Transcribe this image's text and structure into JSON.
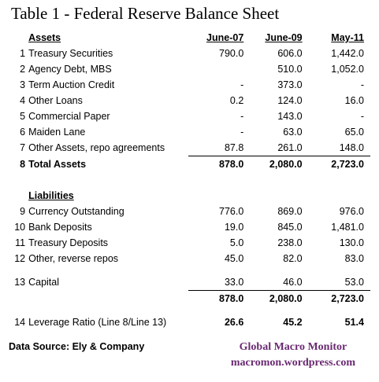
{
  "title": "Table 1 - Federal Reserve Balance Sheet",
  "columns": [
    "June-07",
    "June-09",
    "May-11"
  ],
  "assets_header": "Assets",
  "assets": [
    {
      "num": "1",
      "label": "Treasury Securities",
      "v": [
        "790.0",
        "606.0",
        "1,442.0"
      ]
    },
    {
      "num": "2",
      "label": "Agency Debt, MBS",
      "v": [
        "",
        "510.0",
        "1,052.0"
      ]
    },
    {
      "num": "3",
      "label": "Term Auction Credit",
      "v": [
        "-",
        "373.0",
        "-"
      ]
    },
    {
      "num": "4",
      "label": "Other Loans",
      "v": [
        "0.2",
        "124.0",
        "16.0"
      ]
    },
    {
      "num": "5",
      "label": "Commercial Paper",
      "v": [
        "-",
        "143.0",
        "-"
      ]
    },
    {
      "num": "6",
      "label": "Maiden Lane",
      "v": [
        "-",
        "63.0",
        "65.0"
      ]
    },
    {
      "num": "7",
      "label": "Other Assets, repo agreements",
      "v": [
        "87.8",
        "261.0",
        "148.0"
      ]
    },
    {
      "num": "8",
      "label": "Total Assets",
      "v": [
        "878.0",
        "2,080.0",
        "2,723.0"
      ]
    }
  ],
  "liabilities_header": "Liabilities",
  "liabilities": [
    {
      "num": "9",
      "label": "Currency Outstanding",
      "v": [
        "776.0",
        "869.0",
        "976.0"
      ]
    },
    {
      "num": "10",
      "label": "Bank Deposits",
      "v": [
        "19.0",
        "845.0",
        "1,481.0"
      ]
    },
    {
      "num": "11",
      "label": "Treasury Deposits",
      "v": [
        "5.0",
        "238.0",
        "130.0"
      ]
    },
    {
      "num": "12",
      "label": "Other,  reverse repos",
      "v": [
        "45.0",
        "82.0",
        "83.0"
      ]
    }
  ],
  "capital": {
    "num": "13",
    "label": "Capital",
    "v": [
      "33.0",
      "46.0",
      "53.0"
    ]
  },
  "liab_total": {
    "v": [
      "878.0",
      "2,080.0",
      "2,723.0"
    ]
  },
  "leverage": {
    "num": "14",
    "label": "Leverage Ratio (Line 8/Line 13)",
    "v": [
      "26.6",
      "45.2",
      "51.4"
    ]
  },
  "footer": {
    "source": "Data Source: Ely & Company",
    "brand_name": "Global Macro Monitor",
    "brand_site": "macromon.wordpress.com",
    "brand_color": "#6a2a72"
  }
}
